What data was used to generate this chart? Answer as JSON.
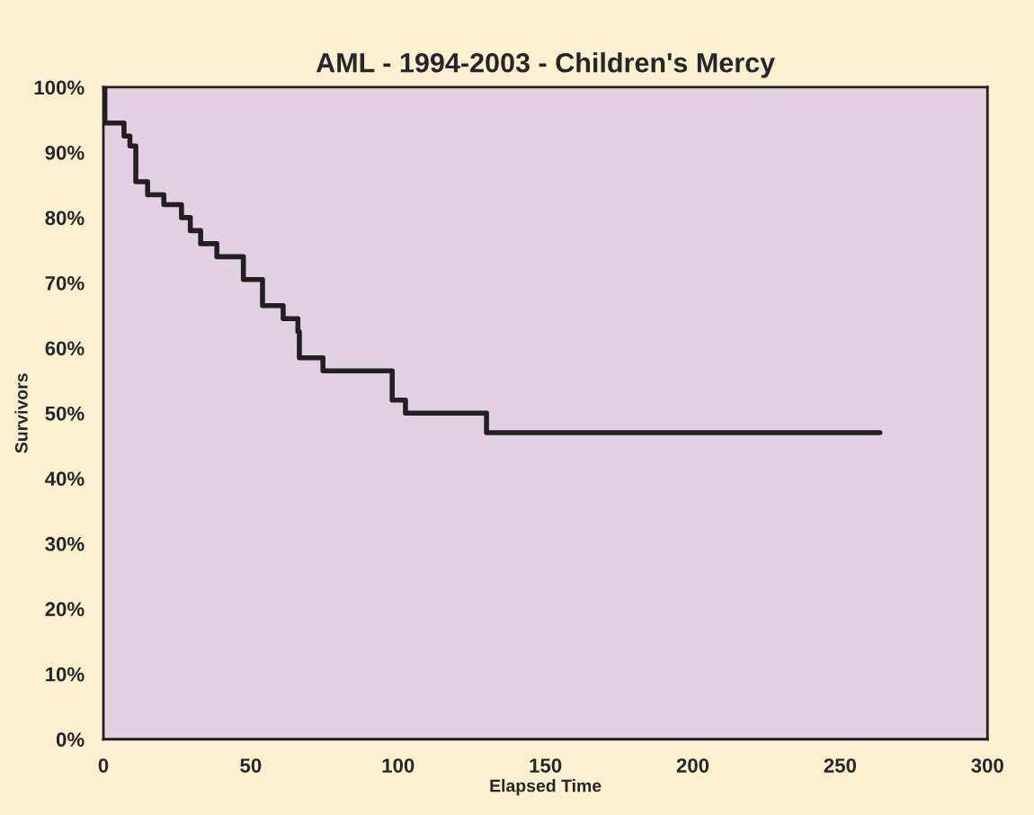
{
  "chart_data": {
    "type": "step",
    "title": "AML - 1994-2003 - Children's Mercy",
    "xlabel": "Elapsed Time",
    "ylabel": "Survivors",
    "x": [
      0,
      0.5,
      7,
      9,
      11,
      15,
      20.5,
      26.5,
      29.5,
      33,
      38.5,
      47.5,
      54,
      61,
      66,
      66.5,
      74.5,
      98,
      102.5,
      130,
      263.5
    ],
    "series": [
      {
        "color": "#231f20",
        "values": [
          100,
          94.5,
          92.5,
          91,
          85.5,
          83.5,
          82,
          80,
          78,
          76,
          74,
          70.5,
          66.5,
          64.5,
          62.5,
          58.5,
          56.5,
          52,
          50,
          47,
          47
        ]
      }
    ],
    "xlim": [
      0,
      300
    ],
    "xticks": [
      0,
      50,
      100,
      150,
      200,
      250,
      300
    ],
    "ylim": [
      0,
      100
    ],
    "yticks": [
      {
        "value": 0,
        "label": "0%"
      },
      {
        "value": 10,
        "label": "10%"
      },
      {
        "value": 20,
        "label": "20%"
      },
      {
        "value": 30,
        "label": "30%"
      },
      {
        "value": 40,
        "label": "40%"
      },
      {
        "value": 50,
        "label": "50%"
      },
      {
        "value": 60,
        "label": "60%"
      },
      {
        "value": 70,
        "label": "70%"
      },
      {
        "value": 80,
        "label": "80%"
      },
      {
        "value": 90,
        "label": "90%"
      },
      {
        "value": 100,
        "label": "100%"
      }
    ],
    "grid": false,
    "line_style": "solid",
    "marker": "none"
  }
}
